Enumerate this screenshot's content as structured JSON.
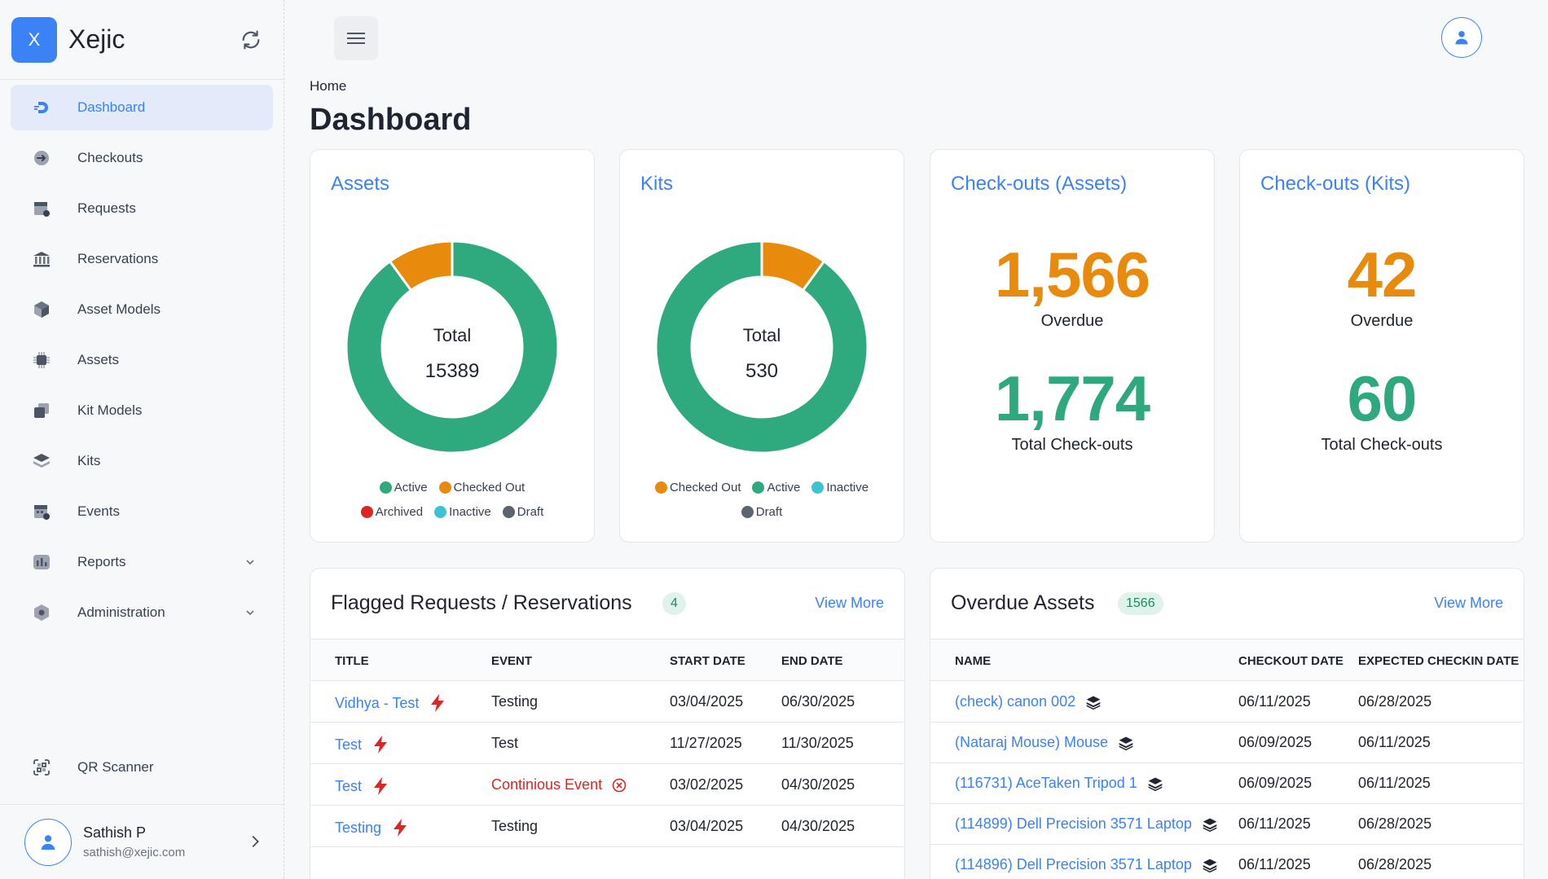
{
  "brand": {
    "logo_letter": "X",
    "name": "Xejic"
  },
  "sidebar": {
    "items": [
      {
        "label": "Dashboard",
        "icon": "dashboard-icon"
      },
      {
        "label": "Checkouts",
        "icon": "checkout-icon"
      },
      {
        "label": "Requests",
        "icon": "requests-icon"
      },
      {
        "label": "Reservations",
        "icon": "reservations-icon"
      },
      {
        "label": "Asset Models",
        "icon": "cube-icon"
      },
      {
        "label": "Assets",
        "icon": "chip-icon"
      },
      {
        "label": "Kit Models",
        "icon": "kit-models-icon"
      },
      {
        "label": "Kits",
        "icon": "layers-icon"
      },
      {
        "label": "Events",
        "icon": "calendar-icon"
      },
      {
        "label": "Reports",
        "icon": "reports-icon"
      },
      {
        "label": "Administration",
        "icon": "hexagon-icon"
      }
    ],
    "qr_label": "QR Scanner",
    "user": {
      "name": "Sathish P",
      "email": "sathish@xejic.com"
    }
  },
  "breadcrumb": "Home",
  "page_title": "Dashboard",
  "cards": {
    "assets": {
      "title": "Assets",
      "total_label": "Total",
      "total_value": "15389",
      "legend": [
        "Active",
        "Checked Out",
        "Archived",
        "Inactive",
        "Draft"
      ]
    },
    "kits": {
      "title": "Kits",
      "total_label": "Total",
      "total_value": "530",
      "legend": [
        "Checked Out",
        "Active",
        "Inactive",
        "Draft"
      ]
    },
    "checkouts_assets": {
      "title": "Check-outs (Assets)",
      "overdue_value": "1,566",
      "overdue_label": "Overdue",
      "total_value": "1,774",
      "total_label": "Total Check-outs"
    },
    "checkouts_kits": {
      "title": "Check-outs (Kits)",
      "overdue_value": "42",
      "overdue_label": "Overdue",
      "total_value": "60",
      "total_label": "Total Check-outs"
    }
  },
  "chart_data": [
    {
      "type": "pie",
      "categories": [
        "Active",
        "Checked Out",
        "Archived",
        "Inactive",
        "Draft"
      ],
      "values": [
        90,
        10,
        0,
        0,
        0
      ],
      "colors": [
        "#2eaa7e",
        "#e88a0c",
        "#dc2626",
        "#3bc3d4",
        "#5c6470"
      ],
      "center_text": "Total 15389",
      "legend": "bottom"
    },
    {
      "type": "pie",
      "categories": [
        "Checked Out",
        "Active",
        "Inactive",
        "Draft"
      ],
      "values": [
        10,
        90,
        0,
        0
      ],
      "colors": [
        "#e88a0c",
        "#2eaa7e",
        "#3bc3d4",
        "#5c6470"
      ],
      "center_text": "Total 530",
      "legend": "bottom"
    }
  ],
  "flagged": {
    "title": "Flagged Requests / Reservations",
    "count": "4",
    "view_more": "View More",
    "columns": [
      "TITLE",
      "EVENT",
      "START DATE",
      "END DATE"
    ],
    "rows": [
      {
        "title": "Vidhya - Test",
        "event": "Testing",
        "start": "03/04/2025",
        "end": "06/30/2025",
        "event_alert": false
      },
      {
        "title": "Test",
        "event": "Test",
        "start": "11/27/2025",
        "end": "11/30/2025",
        "event_alert": false
      },
      {
        "title": "Test",
        "event": "Continious Event",
        "start": "03/02/2025",
        "end": "04/30/2025",
        "event_alert": true
      },
      {
        "title": "Testing",
        "event": "Testing",
        "start": "03/04/2025",
        "end": "04/30/2025",
        "event_alert": false
      }
    ]
  },
  "overdue": {
    "title": "Overdue Assets",
    "count": "1566",
    "view_more": "View More",
    "columns": [
      "NAME",
      "CHECKOUT DATE",
      "EXPECTED CHECKIN DATE"
    ],
    "rows": [
      {
        "name": "(check) canon 002",
        "checkout": "06/11/2025",
        "checkin": "06/28/2025"
      },
      {
        "name": "(Nataraj Mouse) Mouse",
        "checkout": "06/09/2025",
        "checkin": "06/11/2025"
      },
      {
        "name": "(116731) AceTaken Tripod 1",
        "checkout": "06/09/2025",
        "checkin": "06/11/2025"
      },
      {
        "name": "(114899) Dell Precision 3571 Laptop",
        "checkout": "06/11/2025",
        "checkin": "06/28/2025"
      },
      {
        "name": "(114896) Dell Precision 3571 Laptop",
        "checkout": "06/11/2025",
        "checkin": "06/28/2025"
      }
    ]
  }
}
